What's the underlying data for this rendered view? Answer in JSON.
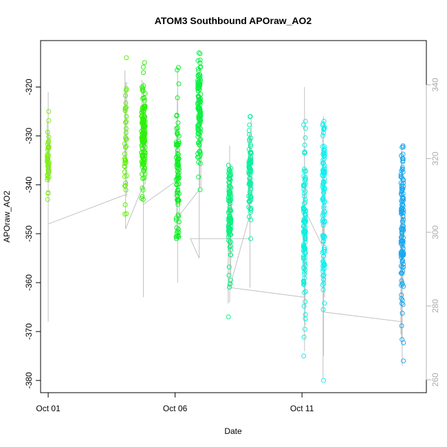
{
  "chart_data": {
    "type": "scatter",
    "title": "ATOM3 Southbound APOraw_AO2",
    "xlabel": "Date",
    "ylabel": "APOraw_AO2",
    "x_ticks": [
      "Oct 01",
      "Oct 06",
      "Oct 11"
    ],
    "x_tick_days": [
      1,
      6,
      11
    ],
    "xlim": [
      0.7,
      15.9
    ],
    "ylim": [
      -382.5,
      -310.5
    ],
    "y_ticks": [
      -380,
      -370,
      -360,
      -350,
      -340,
      -330,
      -320
    ],
    "right_axis": {
      "ticks": [
        260,
        280,
        300,
        320,
        340
      ],
      "lim": [
        256.5,
        352.0
      ]
    },
    "grid": false,
    "legend": "none",
    "colors": {
      "lime": "#7cf00a",
      "green": "#2cf00a",
      "bright_green": "#0af020",
      "spring_green": "#0af080",
      "teal": "#0af0b0",
      "cyan": "#0af0f0",
      "deep_sky": "#1aa8f0",
      "line": "#c0c0c0",
      "right_axis": "#b3b3b3"
    },
    "series": [
      {
        "x_center": 1.0,
        "x_spread": 0.08,
        "y_min": -343,
        "y_max": -325,
        "y_mean": -335,
        "n": 45,
        "color": "#7cf00a"
      },
      {
        "x_center": 4.05,
        "x_spread": 0.08,
        "y_min": -346,
        "y_max": -314,
        "y_mean": -333,
        "n": 40,
        "color": "#5ef00a"
      },
      {
        "x_center": 4.75,
        "x_spread": 0.15,
        "y_min": -343,
        "y_max": -315,
        "y_mean": -330,
        "n": 140,
        "color": "#2cf00a"
      },
      {
        "x_center": 6.1,
        "x_spread": 0.12,
        "y_min": -351,
        "y_max": -316,
        "y_mean": -337,
        "n": 90,
        "color": "#0af020"
      },
      {
        "x_center": 6.95,
        "x_spread": 0.12,
        "y_min": -341,
        "y_max": -313,
        "y_mean": -325,
        "n": 120,
        "color": "#0af040"
      },
      {
        "x_center": 8.15,
        "x_spread": 0.1,
        "y_min": -367,
        "y_max": -336,
        "y_mean": -346,
        "n": 110,
        "color": "#0af080"
      },
      {
        "x_center": 8.95,
        "x_spread": 0.1,
        "y_min": -351,
        "y_max": -326,
        "y_mean": -337,
        "n": 80,
        "color": "#0af0a0"
      },
      {
        "x_center": 11.1,
        "x_spread": 0.09,
        "y_min": -375,
        "y_max": -327,
        "y_mean": -350,
        "n": 120,
        "color": "#0af0e0"
      },
      {
        "x_center": 11.85,
        "x_spread": 0.09,
        "y_min": -380,
        "y_max": -327,
        "y_mean": -345,
        "n": 110,
        "color": "#0af0f0"
      },
      {
        "x_center": 14.95,
        "x_spread": 0.1,
        "y_min": -376,
        "y_max": -332,
        "y_mean": -349,
        "n": 140,
        "color": "#1aa8f0"
      }
    ],
    "connector_line": [
      [
        1.0,
        -368
      ],
      [
        1.0,
        -321
      ],
      [
        1.0,
        -348
      ],
      [
        4.05,
        -342
      ],
      [
        4.05,
        -319
      ],
      [
        4.05,
        -349
      ],
      [
        4.75,
        -340
      ],
      [
        4.75,
        -363
      ],
      [
        4.75,
        -319
      ],
      [
        4.75,
        -358
      ],
      [
        4.75,
        -344
      ],
      [
        6.1,
        -339
      ],
      [
        6.1,
        -316
      ],
      [
        6.1,
        -360
      ],
      [
        6.1,
        -351
      ],
      [
        6.05,
        -347
      ],
      [
        6.95,
        -341
      ],
      [
        6.95,
        -316
      ],
      [
        6.95,
        -355
      ],
      [
        6.6,
        -351
      ],
      [
        8.15,
        -351
      ],
      [
        8.15,
        -358
      ],
      [
        8.15,
        -332
      ],
      [
        8.15,
        -364
      ],
      [
        8.15,
        -351
      ],
      [
        8.95,
        -351
      ],
      [
        8.95,
        -352
      ],
      [
        8.95,
        -333
      ],
      [
        8.95,
        -361
      ],
      [
        8.95,
        -346
      ],
      [
        8.15,
        -361
      ],
      [
        11.1,
        -363
      ],
      [
        11.1,
        -320
      ],
      [
        11.1,
        -374
      ],
      [
        11.1,
        -364
      ],
      [
        11.1,
        -345
      ],
      [
        11.85,
        -353
      ],
      [
        11.85,
        -375
      ],
      [
        11.85,
        -326
      ],
      [
        11.85,
        -372
      ],
      [
        11.85,
        -366
      ],
      [
        14.95,
        -368
      ],
      [
        14.95,
        -377
      ],
      [
        14.95,
        -343
      ],
      [
        14.95,
        -366
      ]
    ]
  }
}
